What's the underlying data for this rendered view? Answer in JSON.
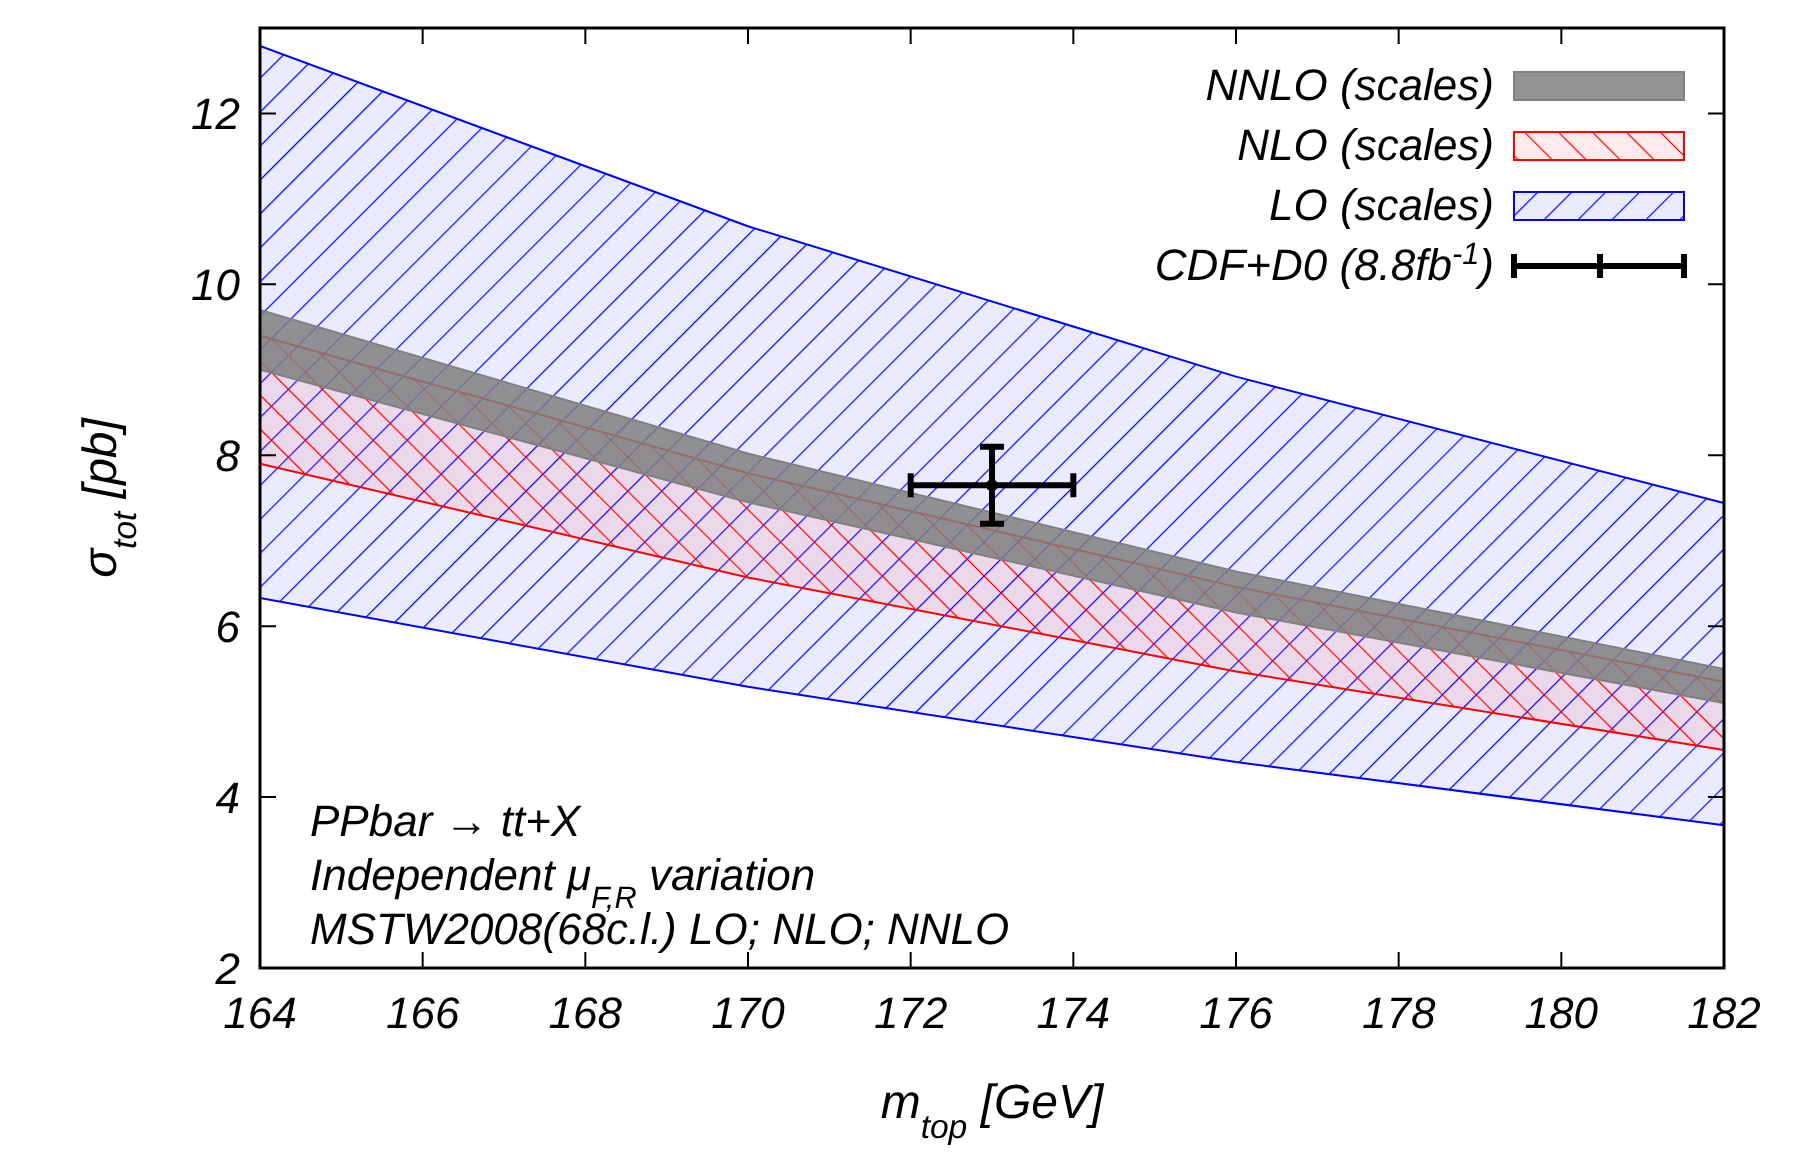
{
  "chart_data": {
    "type": "area",
    "xlabel": "m$_{top}$ [GeV]",
    "ylabel": "σ$_{tot}$ [pb]",
    "xlim": [
      164,
      182
    ],
    "xticks": [
      164,
      166,
      168,
      170,
      172,
      174,
      176,
      178,
      180,
      182
    ],
    "ylim": [
      2,
      13
    ],
    "yticks": [
      2,
      4,
      6,
      8,
      10,
      12
    ],
    "grid": false,
    "legend": "top right",
    "series": [
      {
        "name": "NNLO (scales)",
        "color": "#808080",
        "x": [
          164,
          170,
          176,
          182
        ],
        "values": [
          null,
          null,
          null,
          null
        ],
        "lower": [
          9.0,
          7.45,
          6.16,
          5.1
        ],
        "upper": [
          9.7,
          8.02,
          6.64,
          5.5
        ]
      },
      {
        "name": "NLO (scales)",
        "color": "#ff0000",
        "x": [
          164,
          170,
          176,
          182
        ],
        "values": [
          null,
          null,
          null,
          null
        ],
        "lower": [
          7.9,
          6.57,
          5.47,
          4.55
        ],
        "upper": [
          9.4,
          7.79,
          6.46,
          5.35
        ]
      },
      {
        "name": "LO (scales)",
        "color": "#0000ff",
        "x": [
          164,
          170,
          176,
          182
        ],
        "values": [
          null,
          null,
          null,
          null
        ],
        "lower": [
          6.33,
          5.29,
          4.41,
          3.67
        ],
        "upper": [
          12.79,
          10.68,
          8.92,
          7.44
        ]
      },
      {
        "name": "CDF+D0 (8.8fb$^{-1}$)",
        "color": "#000000",
        "type": "scatter",
        "marker": "circle",
        "x": [
          173
        ],
        "values": [
          7.65
        ],
        "errors": [
          [
            7.2,
            8.1
          ]
        ],
        "xerrors": [
          [
            172,
            174
          ]
        ]
      }
    ],
    "annotations": [
      "PPbar → tt+X",
      "Independent μ$_{F,R}$ variation",
      "MSTW2008(68c.l.) LO; NLO; NNLO"
    ]
  }
}
